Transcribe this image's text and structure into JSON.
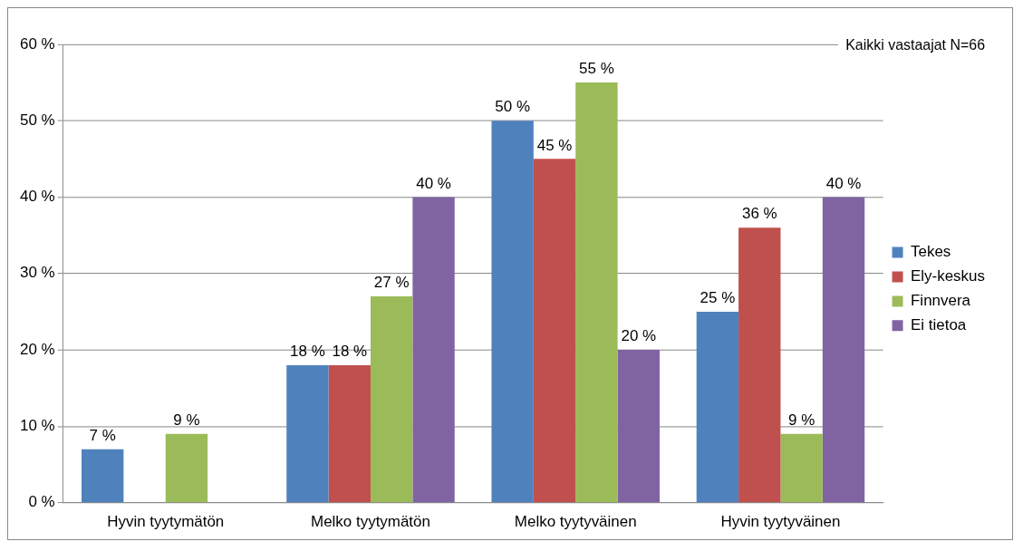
{
  "chart_data": {
    "type": "bar",
    "categories": [
      "Hyvin tyytymätön",
      "Melko tyytymätön",
      "Melko tyytyväinen",
      "Hyvin tyytyväinen"
    ],
    "series": [
      {
        "name": "Tekes",
        "color": "#4f81bd",
        "values": [
          7,
          18,
          50,
          25
        ],
        "value_labels": [
          "7 %",
          "18 %",
          "50 %",
          "25 %"
        ]
      },
      {
        "name": "Ely-keskus",
        "color": "#c0504d",
        "values": [
          0,
          18,
          45,
          36
        ],
        "value_labels": [
          null,
          "18 %",
          "45 %",
          "36 %"
        ]
      },
      {
        "name": "Finnvera",
        "color": "#9bbb59",
        "values": [
          9,
          27,
          55,
          9
        ],
        "value_labels": [
          "9 %",
          "27 %",
          "55 %",
          "9 %"
        ]
      },
      {
        "name": "Ei tietoa",
        "color": "#8064a2",
        "values": [
          0,
          40,
          20,
          40
        ],
        "value_labels": [
          null,
          "40 %",
          "20 %",
          "40 %"
        ]
      }
    ],
    "ylim": [
      0,
      60
    ],
    "yticks": [
      {
        "value": 0,
        "label": "0 %"
      },
      {
        "value": 10,
        "label": "10 %"
      },
      {
        "value": 20,
        "label": "20 %"
      },
      {
        "value": 30,
        "label": "30 %"
      },
      {
        "value": 40,
        "label": "40 %"
      },
      {
        "value": 50,
        "label": "50 %"
      },
      {
        "value": 60,
        "label": "60 %"
      }
    ],
    "grid": "y",
    "legend": "right",
    "annotations": [
      "Kaikki vastaajat N=66"
    ]
  }
}
